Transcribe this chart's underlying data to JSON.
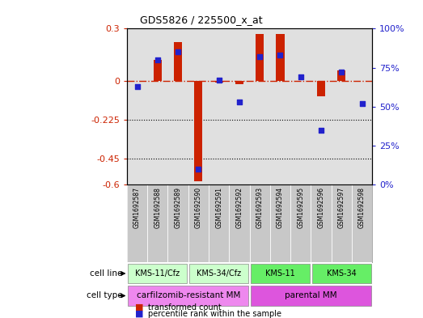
{
  "title": "GDS5826 / 225500_x_at",
  "samples": [
    "GSM1692587",
    "GSM1692588",
    "GSM1692589",
    "GSM1692590",
    "GSM1692591",
    "GSM1692592",
    "GSM1692593",
    "GSM1692594",
    "GSM1692595",
    "GSM1692596",
    "GSM1692597",
    "GSM1692598"
  ],
  "transformed_count": [
    0.0,
    0.12,
    0.22,
    -0.58,
    -0.01,
    -0.02,
    0.27,
    0.27,
    0.0,
    -0.09,
    0.06,
    0.0
  ],
  "percentile_rank": [
    63,
    80,
    85,
    10,
    67,
    53,
    82,
    83,
    69,
    35,
    72,
    52
  ],
  "ylim_left": [
    -0.6,
    0.3
  ],
  "ylim_right": [
    0,
    100
  ],
  "yticks_left": [
    -0.6,
    -0.45,
    -0.225,
    0,
    0.3
  ],
  "yticks_right": [
    0,
    25,
    50,
    75,
    100
  ],
  "ytick_labels_left": [
    "-0.6",
    "-0.45",
    "-0.225",
    "0",
    "0.3"
  ],
  "ytick_labels_right": [
    "0%",
    "25%",
    "50%",
    "75%",
    "100%"
  ],
  "cell_line_groups": [
    {
      "label": "KMS-11/Cfz",
      "start": 0,
      "end": 3,
      "color": "#ccffcc"
    },
    {
      "label": "KMS-34/Cfz",
      "start": 3,
      "end": 6,
      "color": "#ccffcc"
    },
    {
      "label": "KMS-11",
      "start": 6,
      "end": 9,
      "color": "#66ee66"
    },
    {
      "label": "KMS-34",
      "start": 9,
      "end": 12,
      "color": "#66ee66"
    }
  ],
  "cell_type_groups": [
    {
      "label": "carfilzomib-resistant MM",
      "start": 0,
      "end": 6,
      "color": "#ee88ee"
    },
    {
      "label": "parental MM",
      "start": 6,
      "end": 12,
      "color": "#dd55dd"
    }
  ],
  "bar_color_red": "#cc2200",
  "dot_color_blue": "#2222cc",
  "ref_line_color": "#cc2200",
  "grid_line_color": "#000000",
  "background_color": "#ffffff",
  "plot_bg_color": "#e0e0e0"
}
